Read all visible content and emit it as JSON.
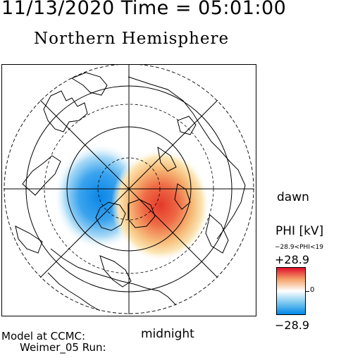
{
  "header": {
    "datetime": "11/13/2020 Time = 05:01:00",
    "title": "Northern Hemisphere"
  },
  "map": {
    "projection": "polar",
    "grid": true,
    "coastlines": true,
    "potential_pattern": "two-cell convection: negative cell dusk side, positive cell dawn side"
  },
  "labels": {
    "dawn": "dawn",
    "midnight": "midnight"
  },
  "legend": {
    "title": "PHI [kV]",
    "range_text": "−28.9<PHI<19",
    "max_label": "+28.9",
    "zero_label": "0",
    "min_label": "−28.9",
    "max_color": "#e0102a",
    "zero_color": "#ffffff",
    "min_color": "#0088e6"
  },
  "credits": {
    "line1": "Model at CCMC:",
    "line2": "Weimer_05 Run:"
  }
}
